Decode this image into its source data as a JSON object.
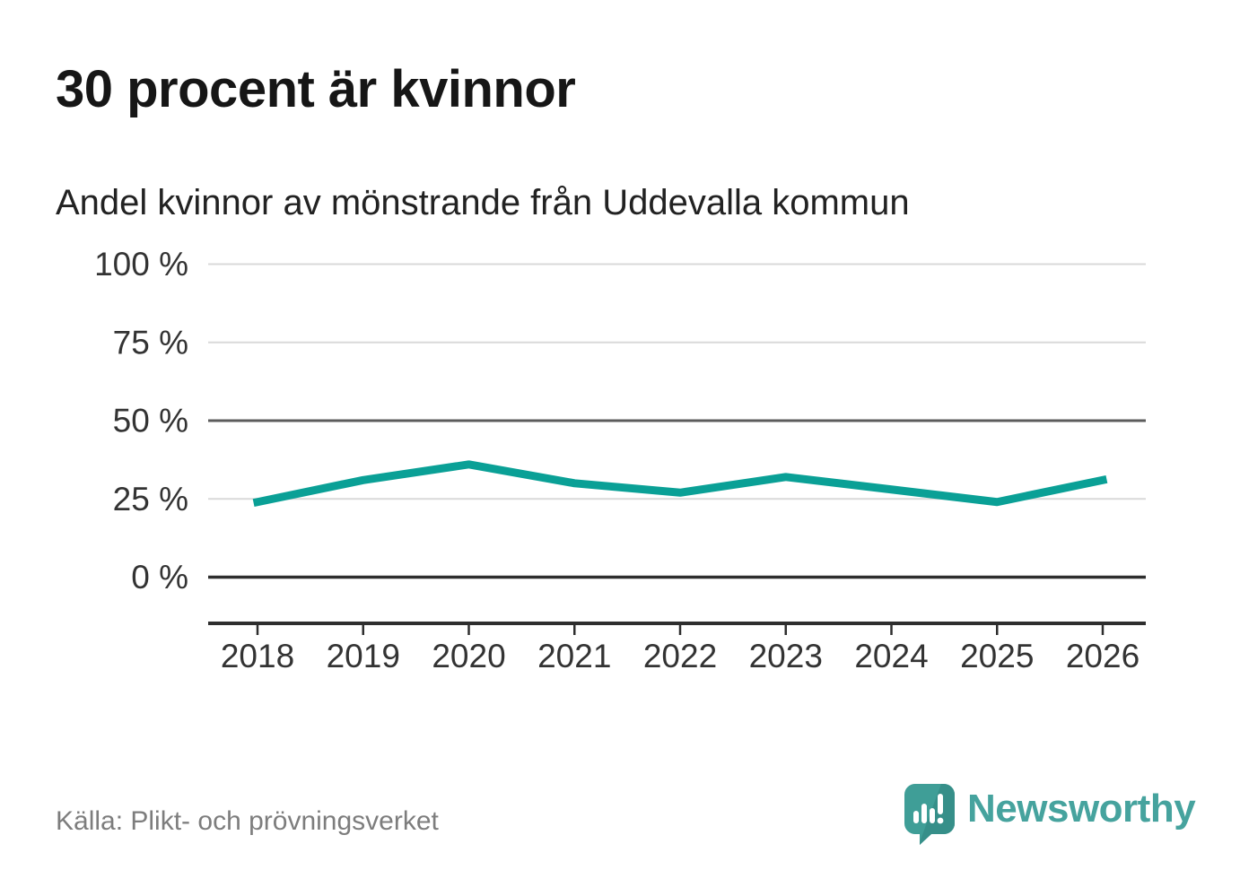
{
  "header": {
    "title": "30 procent är kvinnor",
    "subtitle": "Andel kvinnor av mönstrande från Uddevalla kommun"
  },
  "footer": {
    "source": "Källa: Plikt- och prövningsverket",
    "brand_name": "Newsworthy",
    "brand_icon": "newsworthy-speech-bubble-with-bar-chart-and-exclamation"
  },
  "colors": {
    "line": "#0aa096",
    "grid_light": "#d9d9d9",
    "grid_mid": "#5c5c5c",
    "grid_dark": "#2e2e2e",
    "axis": "#2e2e2e",
    "tick_text": "#333333",
    "title_text": "#161616",
    "source_text": "#7d7d7d",
    "brand_teal": "#46a39e",
    "brand_icon_teal": "#3f9e97"
  },
  "chart_data": {
    "type": "line",
    "title": "30 procent är kvinnor",
    "subtitle": "Andel kvinnor av mönstrande från Uddevalla kommun",
    "x": [
      2018,
      2019,
      2020,
      2021,
      2022,
      2023,
      2024,
      2025,
      2026
    ],
    "x_labels": [
      "2018",
      "2019",
      "2020",
      "2021",
      "2022",
      "2023",
      "2024",
      "2025",
      "2026"
    ],
    "series": [
      {
        "name": "Andel kvinnor (%)",
        "values": [
          24,
          31,
          36,
          30,
          27,
          32,
          28,
          24,
          31
        ]
      }
    ],
    "unit": "%",
    "ylim": [
      0,
      100
    ],
    "yticks": [
      {
        "value": 0,
        "label": "0 %",
        "emphasis": "dark"
      },
      {
        "value": 25,
        "label": "25 %",
        "emphasis": "light"
      },
      {
        "value": 50,
        "label": "50 %",
        "emphasis": "mid"
      },
      {
        "value": 75,
        "label": "75 %",
        "emphasis": "light"
      },
      {
        "value": 100,
        "label": "100 %",
        "emphasis": "light"
      }
    ],
    "grid": true,
    "legend": "none"
  }
}
